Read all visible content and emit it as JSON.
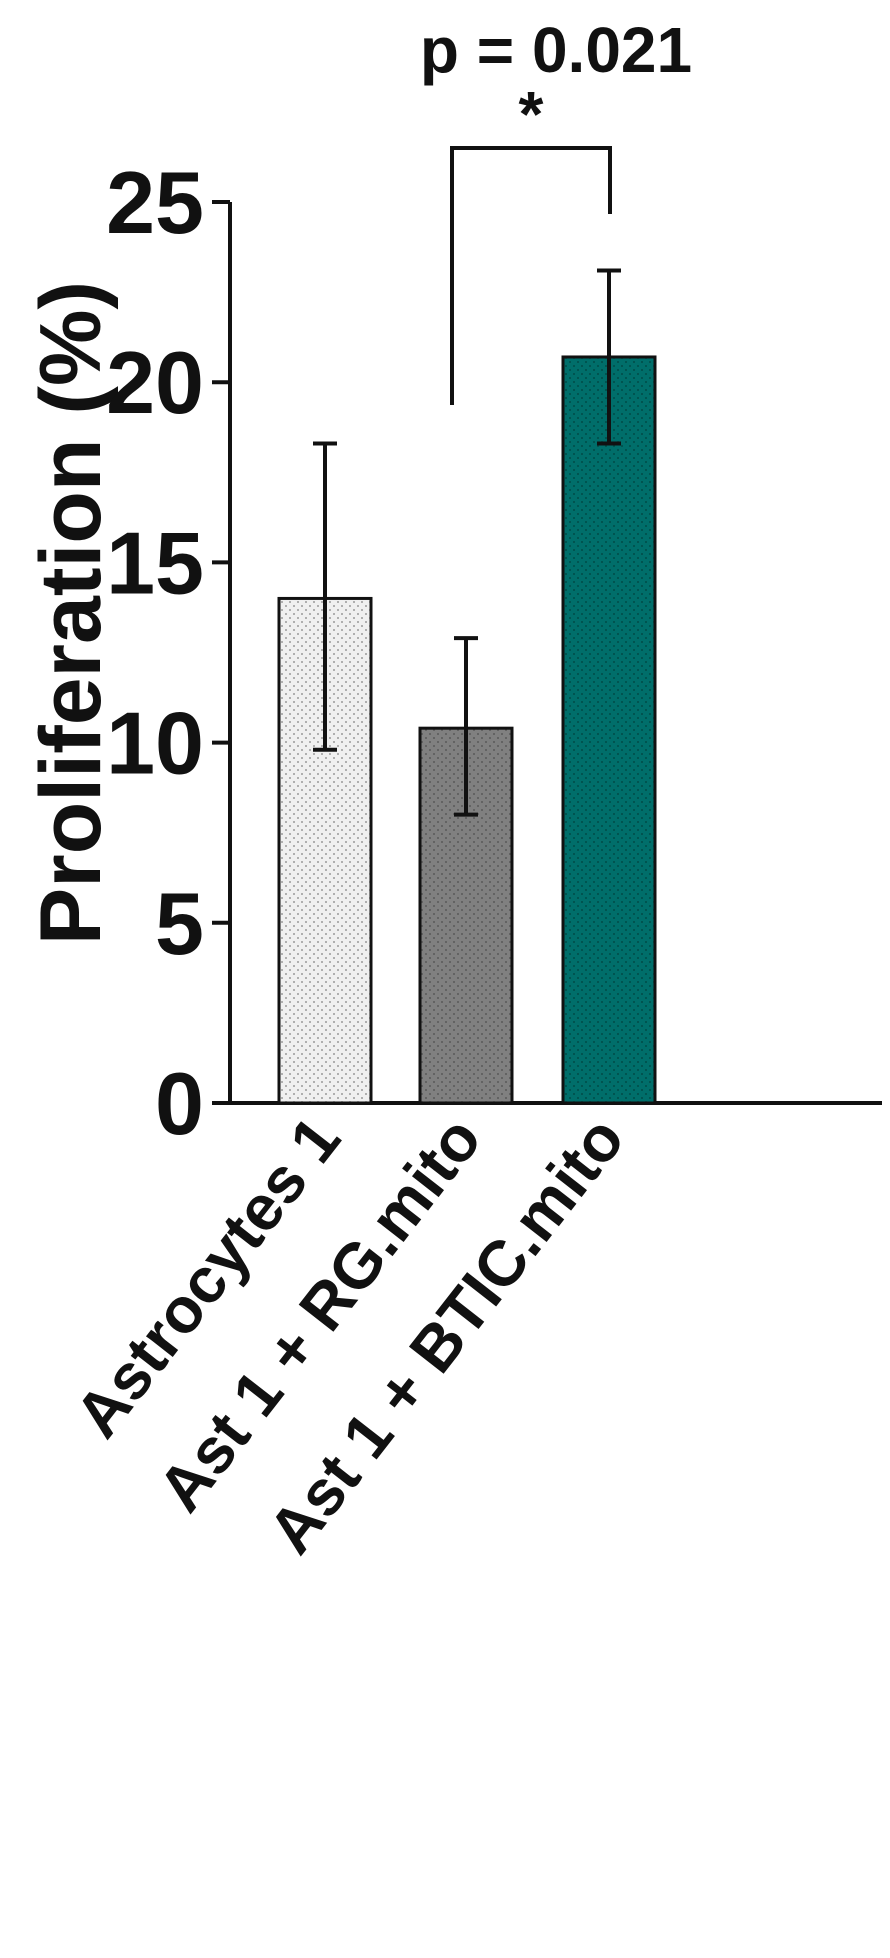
{
  "chart_data": {
    "type": "bar",
    "title": "",
    "xlabel": "",
    "ylabel": "Proliferation (%)",
    "categories": [
      "Astrocytes 1",
      "Ast 1 + RG.mito",
      "Ast 1 + BTIC.mito"
    ],
    "values": [
      14.0,
      10.4,
      20.7
    ],
    "error_low": [
      9.8,
      8.0,
      18.3
    ],
    "error_high": [
      18.3,
      12.9,
      23.1
    ],
    "ylim": [
      0,
      25
    ],
    "yticks": [
      "0",
      "5",
      "10",
      "15",
      "20",
      "25"
    ],
    "grid": false,
    "legend": "none",
    "colors": [
      "#e8e8e8",
      "#7f7f7f",
      "#006e6a"
    ],
    "significance": {
      "from_category": "Ast 1 + RG.mito",
      "to_category": "Ast 1 + BTIC.mito",
      "marker": "*",
      "p_label": "p = 0.021"
    }
  }
}
